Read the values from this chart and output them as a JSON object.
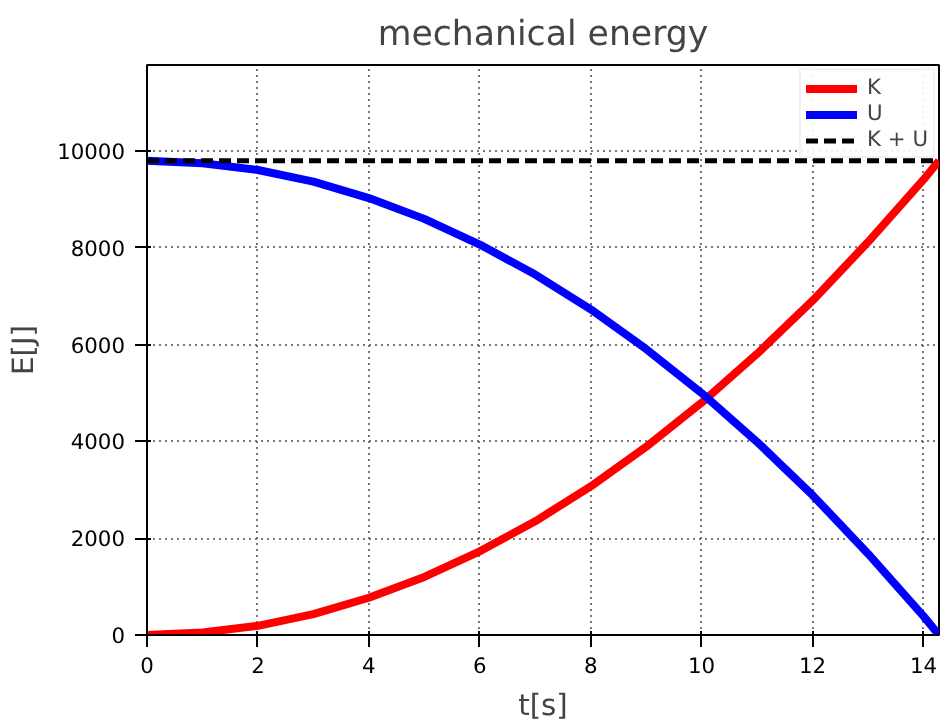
{
  "chart_data": {
    "type": "line",
    "title": "mechanical energy",
    "xlabel": "t[s]",
    "ylabel": "E[J]",
    "x": [
      0,
      1,
      2,
      3,
      4,
      5,
      6,
      7,
      8,
      9,
      10,
      11,
      12,
      13,
      14,
      14.28
    ],
    "series": [
      {
        "name": "K",
        "color": "#ff0000",
        "values": [
          0,
          50,
          190,
          430,
          770,
          1200,
          1730,
          2350,
          3070,
          3890,
          4800,
          5810,
          6910,
          8120,
          9410,
          9800
        ]
      },
      {
        "name": "U",
        "color": "#0000ff",
        "values": [
          9800,
          9750,
          9610,
          9370,
          9030,
          8600,
          8070,
          7450,
          6730,
          5910,
          5000,
          3990,
          2890,
          1680,
          390,
          0
        ]
      },
      {
        "name": "K + U",
        "color": "#000000",
        "line_style": "dashed",
        "x": [
          0,
          14.28
        ],
        "values": [
          9800,
          9800
        ]
      }
    ],
    "xlim": [
      0,
      14.28
    ],
    "ylim": [
      0,
      11780
    ],
    "xticks": [
      0,
      2,
      4,
      6,
      8,
      10,
      12,
      14
    ],
    "yticks": [
      0,
      2000,
      4000,
      6000,
      8000,
      10000
    ],
    "grid": true,
    "legend": "top right",
    "marker": "none",
    "line_style": "solid"
  }
}
